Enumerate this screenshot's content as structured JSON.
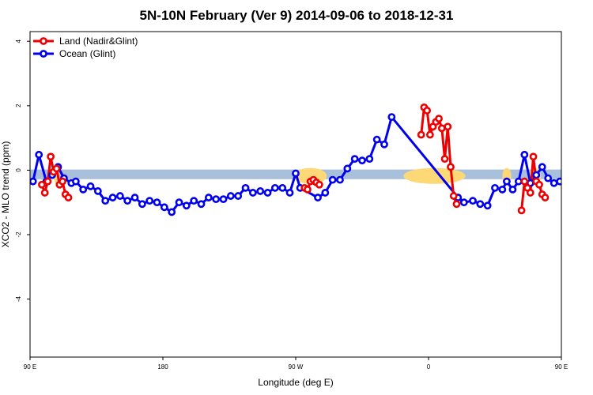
{
  "chart_data": {
    "type": "line",
    "title": "5N-10N February (Ver 9)   2014-09-06 to 2018-12-31",
    "xlabel": "Longitude (deg E)",
    "ylabel": "XCO2 - MLO trend (ppm)",
    "xlim": [
      90,
      450
    ],
    "ylim": [
      -5.8,
      4.3
    ],
    "x_ticks": [
      {
        "value": 90,
        "label": "90 E"
      },
      {
        "value": 180,
        "label": "180"
      },
      {
        "value": 270,
        "label": "90 W"
      },
      {
        "value": 360,
        "label": "0"
      },
      {
        "value": 450,
        "label": "90 E"
      },
      {
        "value": 540,
        "label": "180"
      }
    ],
    "y_ticks": [
      -4,
      -2,
      0,
      2,
      4
    ],
    "legend_position": "top-left",
    "series": [
      {
        "name": "Land (Nadir&Glint)",
        "color": "#ee0000",
        "segments": [
          [
            [
              98,
              -0.45
            ],
            [
              100,
              -0.7
            ],
            [
              102,
              -0.35
            ],
            [
              104,
              0.42
            ],
            [
              106,
              -0.05
            ],
            [
              108,
              0.05
            ],
            [
              110,
              -0.45
            ],
            [
              112,
              -0.35
            ],
            [
              114,
              -0.75
            ],
            [
              116,
              -0.85
            ]
          ],
          [
            [
              276,
              -0.55
            ],
            [
              278,
              -0.6
            ],
            [
              280,
              -0.35
            ],
            [
              282,
              -0.3
            ],
            [
              284,
              -0.38
            ],
            [
              286,
              -0.45
            ]
          ],
          [
            [
              355,
              1.1
            ],
            [
              357,
              1.95
            ],
            [
              359,
              1.85
            ],
            [
              361,
              1.1
            ],
            [
              363,
              1.35
            ],
            [
              365,
              1.5
            ],
            [
              367,
              1.6
            ],
            [
              369,
              1.3
            ],
            [
              371,
              0.35
            ],
            [
              373,
              1.35
            ],
            [
              375,
              0.1
            ],
            [
              377,
              -0.8
            ],
            [
              379,
              -1.05
            ]
          ],
          [
            [
              423,
              -1.25
            ],
            [
              425,
              -0.35
            ],
            [
              427,
              -0.55
            ],
            [
              429,
              -0.7
            ],
            [
              431,
              0.42
            ],
            [
              433,
              -0.35
            ],
            [
              435,
              -0.45
            ],
            [
              437,
              -0.75
            ],
            [
              439,
              -0.85
            ]
          ]
        ]
      },
      {
        "name": "Ocean (Glint)",
        "color": "#0000ee",
        "points": [
          [
            92,
            -0.35
          ],
          [
            96,
            0.48
          ],
          [
            101,
            -0.35
          ],
          [
            105,
            -0.15
          ],
          [
            109,
            0.1
          ],
          [
            113,
            -0.25
          ],
          [
            118,
            -0.4
          ],
          [
            121,
            -0.35
          ],
          [
            126,
            -0.6
          ],
          [
            131,
            -0.5
          ],
          [
            136,
            -0.65
          ],
          [
            141,
            -0.95
          ],
          [
            146,
            -0.85
          ],
          [
            151,
            -0.8
          ],
          [
            156,
            -0.95
          ],
          [
            161,
            -0.85
          ],
          [
            166,
            -1.05
          ],
          [
            171,
            -0.95
          ],
          [
            176,
            -1.0
          ],
          [
            181,
            -1.15
          ],
          [
            186,
            -1.3
          ],
          [
            191,
            -1.0
          ],
          [
            196,
            -1.1
          ],
          [
            201,
            -0.95
          ],
          [
            206,
            -1.05
          ],
          [
            211,
            -0.85
          ],
          [
            216,
            -0.9
          ],
          [
            221,
            -0.9
          ],
          [
            226,
            -0.8
          ],
          [
            231,
            -0.8
          ],
          [
            236,
            -0.55
          ],
          [
            241,
            -0.7
          ],
          [
            246,
            -0.65
          ],
          [
            251,
            -0.7
          ],
          [
            256,
            -0.55
          ],
          [
            261,
            -0.55
          ],
          [
            266,
            -0.7
          ],
          [
            270,
            -0.1
          ],
          [
            273,
            -0.55
          ],
          [
            285,
            -0.85
          ],
          [
            290,
            -0.7
          ],
          [
            295,
            -0.3
          ],
          [
            300,
            -0.3
          ],
          [
            305,
            0.05
          ],
          [
            310,
            0.35
          ],
          [
            315,
            0.3
          ],
          [
            320,
            0.35
          ],
          [
            325,
            0.95
          ],
          [
            330,
            0.8
          ],
          [
            335,
            1.65
          ],
          [
            380,
            -0.85
          ],
          [
            384,
            -1.0
          ],
          [
            390,
            -0.95
          ],
          [
            395,
            -1.05
          ],
          [
            400,
            -1.1
          ],
          [
            405,
            -0.55
          ],
          [
            410,
            -0.6
          ],
          [
            413,
            -0.35
          ],
          [
            417,
            -0.6
          ],
          [
            421,
            -0.35
          ],
          [
            425,
            0.48
          ],
          [
            429,
            -0.4
          ],
          [
            433,
            -0.15
          ],
          [
            437,
            0.1
          ],
          [
            441,
            -0.25
          ],
          [
            445,
            -0.4
          ],
          [
            449,
            -0.35
          ],
          [
            454,
            -0.6
          ],
          [
            459,
            -0.5
          ],
          [
            464,
            -0.65
          ],
          [
            469,
            -0.95
          ],
          [
            474,
            -0.85
          ],
          [
            479,
            -0.8
          ],
          [
            484,
            -0.95
          ],
          [
            489,
            -0.85
          ],
          [
            494,
            -1.05
          ],
          [
            499,
            -1.0
          ]
        ]
      }
    ],
    "background_band": {
      "y_range": [
        -0.28,
        0.02
      ],
      "ocean_color": "#a8c0dc",
      "land_color": "#fcd877",
      "land_spans": [
        [
          106,
          110
        ],
        [
          269,
          291
        ],
        [
          343,
          385
        ],
        [
          410,
          416
        ],
        [
          428,
          436
        ]
      ]
    }
  }
}
